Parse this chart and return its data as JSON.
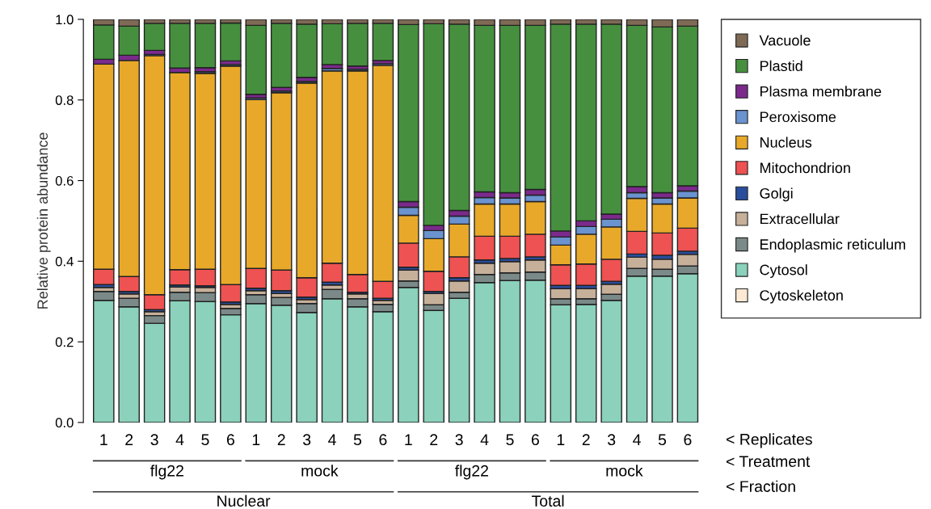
{
  "chart_data": {
    "type": "bar",
    "stacked": true,
    "ylabel": "Relative protein abundance",
    "categories": [
      "1",
      "2",
      "3",
      "4",
      "5",
      "6",
      "1",
      "2",
      "3",
      "4",
      "5",
      "6",
      "1",
      "2",
      "3",
      "4",
      "5",
      "6",
      "1",
      "2",
      "3",
      "4",
      "5",
      "6"
    ],
    "ylim": [
      0,
      1.0
    ],
    "yticks": [
      {
        "value": 0,
        "label": "0.0"
      },
      {
        "value": 0.2,
        "label": "0.2"
      },
      {
        "value": 0.4,
        "label": "0.4"
      },
      {
        "value": 0.6,
        "label": "0.6"
      },
      {
        "value": 0.8,
        "label": "0.8"
      },
      {
        "value": 1.0,
        "label": "1.0"
      }
    ],
    "grid": false,
    "legend": "right",
    "annotations": [
      "flg22",
      "mock",
      "flg22",
      "mock",
      "Nuclear",
      "Total",
      "< Replicates",
      "< Treatment",
      "< Fraction"
    ],
    "series": [
      {
        "name": "Cytoskeleton",
        "color": "#fbe9d4",
        "values": [
          0,
          0,
          0,
          0,
          0,
          0,
          0,
          0,
          0,
          0,
          0,
          0,
          0,
          0,
          0,
          0,
          0,
          0,
          0,
          0,
          0,
          0,
          0,
          0
        ]
      },
      {
        "name": "Cytosol",
        "color": "#8bd1bb",
        "values": [
          0.303,
          0.287,
          0.246,
          0.302,
          0.3,
          0.267,
          0.295,
          0.291,
          0.273,
          0.307,
          0.287,
          0.275,
          0.335,
          0.278,
          0.308,
          0.347,
          0.352,
          0.353,
          0.292,
          0.293,
          0.303,
          0.363,
          0.363,
          0.369
        ]
      },
      {
        "name": "Endoplasmic reticulum",
        "color": "#7b8a88",
        "values": [
          0.022,
          0.021,
          0.019,
          0.021,
          0.022,
          0.016,
          0.022,
          0.019,
          0.022,
          0.023,
          0.02,
          0.018,
          0.016,
          0.014,
          0.015,
          0.02,
          0.019,
          0.02,
          0.015,
          0.014,
          0.015,
          0.019,
          0.017,
          0.019
        ]
      },
      {
        "name": "Extracellular",
        "color": "#c6b09a",
        "values": [
          0.01,
          0.011,
          0.01,
          0.013,
          0.013,
          0.01,
          0.01,
          0.01,
          0.01,
          0.011,
          0.012,
          0.01,
          0.027,
          0.028,
          0.028,
          0.028,
          0.028,
          0.03,
          0.025,
          0.025,
          0.025,
          0.028,
          0.025,
          0.029
        ]
      },
      {
        "name": "Golgi",
        "color": "#2a4d9c",
        "values": [
          0.007,
          0.006,
          0.005,
          0.005,
          0.004,
          0.006,
          0.006,
          0.007,
          0.006,
          0.007,
          0.004,
          0.005,
          0.007,
          0.005,
          0.008,
          0.008,
          0.008,
          0.008,
          0.008,
          0.008,
          0.007,
          0.008,
          0.01,
          0.008
        ]
      },
      {
        "name": "Mitochondrion",
        "color": "#ee5252",
        "values": [
          0.038,
          0.037,
          0.037,
          0.038,
          0.041,
          0.043,
          0.049,
          0.051,
          0.048,
          0.047,
          0.044,
          0.042,
          0.06,
          0.05,
          0.052,
          0.059,
          0.055,
          0.056,
          0.051,
          0.053,
          0.055,
          0.056,
          0.055,
          0.057
        ]
      },
      {
        "name": "Nucleus",
        "color": "#e8a92a",
        "values": [
          0.509,
          0.536,
          0.593,
          0.489,
          0.486,
          0.542,
          0.419,
          0.44,
          0.483,
          0.477,
          0.505,
          0.536,
          0.069,
          0.081,
          0.081,
          0.08,
          0.08,
          0.081,
          0.049,
          0.074,
          0.08,
          0.082,
          0.072,
          0.075
        ]
      },
      {
        "name": "Peroxisome",
        "color": "#6a93cf",
        "values": [
          null,
          null,
          0.003,
          null,
          0.004,
          0.004,
          0.004,
          0.004,
          0.004,
          0.006,
          0.004,
          0.004,
          0.02,
          0.02,
          0.02,
          0.016,
          0.015,
          0.016,
          0.02,
          0.019,
          0.019,
          0.014,
          0.015,
          0.017
        ]
      },
      {
        "name": "Plasma membrane",
        "color": "#7b2a8c",
        "values": [
          0.012,
          0.013,
          0.01,
          0.011,
          0.01,
          0.009,
          0.009,
          0.009,
          0.01,
          0.01,
          0.008,
          0.008,
          0.014,
          0.013,
          0.014,
          0.014,
          0.013,
          0.014,
          0.015,
          0.014,
          0.013,
          0.015,
          0.013,
          0.013
        ]
      },
      {
        "name": "Plastid",
        "color": "#468f3f",
        "values": [
          0.085,
          0.072,
          0.067,
          0.111,
          0.11,
          0.094,
          0.171,
          0.159,
          0.132,
          0.101,
          0.106,
          0.092,
          0.439,
          0.5,
          0.462,
          0.413,
          0.415,
          0.407,
          0.513,
          0.488,
          0.471,
          0.4,
          0.411,
          0.396
        ]
      },
      {
        "name": "Vacuole",
        "color": "#7f6a55",
        "values": [
          0.014,
          0.017,
          0.01,
          0.01,
          0.01,
          0.009,
          0.015,
          0.01,
          0.012,
          0.011,
          0.01,
          0.01,
          0.013,
          0.011,
          0.012,
          0.015,
          0.015,
          0.015,
          0.012,
          0.012,
          0.012,
          0.015,
          0.019,
          0.017
        ]
      }
    ]
  }
}
